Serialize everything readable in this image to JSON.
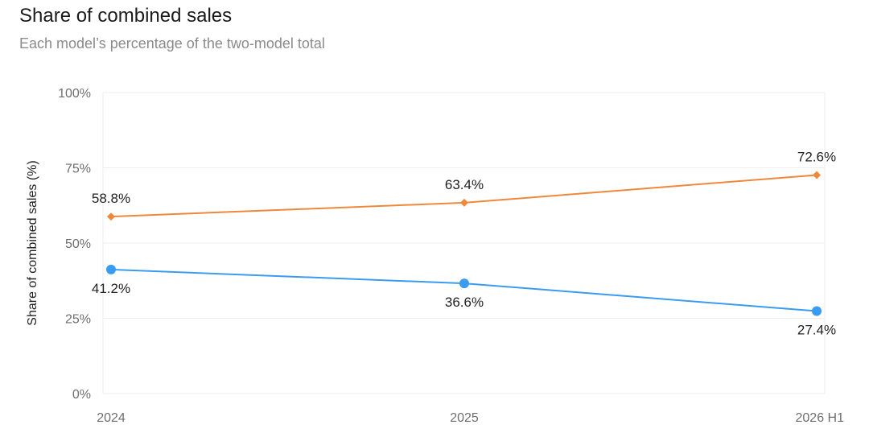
{
  "chart_data": {
    "type": "line",
    "title": "Share of combined sales",
    "subtitle": "Each model’s percentage of the two-model total",
    "ylabel": "Share of combined sales (%)",
    "xlabel": "",
    "categories": [
      "2024",
      "2025",
      "2026 H1"
    ],
    "ylim": [
      0,
      100
    ],
    "yticks": [
      0,
      25,
      50,
      75,
      100
    ],
    "ytick_labels": [
      "0%",
      "25%",
      "50%",
      "75%",
      "100%"
    ],
    "grid": true,
    "legend": "none",
    "series": [
      {
        "marker": "diamond",
        "color": "#f0883c",
        "values": [
          58.8,
          63.4,
          72.6
        ],
        "labels": [
          "58.8%",
          "63.4%",
          "72.6%"
        ],
        "label_position": "above"
      },
      {
        "marker": "circle",
        "color": "#3a9cf0",
        "values": [
          41.2,
          36.6,
          27.4
        ],
        "labels": [
          "41.2%",
          "36.6%",
          "27.4%"
        ],
        "label_position": "below"
      }
    ]
  }
}
